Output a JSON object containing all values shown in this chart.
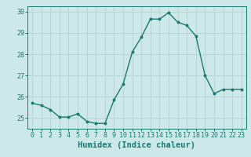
{
  "x": [
    0,
    1,
    2,
    3,
    4,
    5,
    6,
    7,
    8,
    9,
    10,
    11,
    12,
    13,
    14,
    15,
    16,
    17,
    18,
    19,
    20,
    21,
    22,
    23
  ],
  "y": [
    25.7,
    25.6,
    25.4,
    25.05,
    25.05,
    25.2,
    24.85,
    24.75,
    24.75,
    25.85,
    26.6,
    28.1,
    28.8,
    29.65,
    29.65,
    29.95,
    29.5,
    29.35,
    28.85,
    27.0,
    26.15,
    26.35,
    26.35,
    26.35
  ],
  "xlabel": "Humidex (Indice chaleur)",
  "ylim": [
    24.5,
    30.25
  ],
  "xlim": [
    -0.5,
    23.5
  ],
  "yticks": [
    25,
    26,
    27,
    28,
    29,
    30
  ],
  "xticks": [
    0,
    1,
    2,
    3,
    4,
    5,
    6,
    7,
    8,
    9,
    10,
    11,
    12,
    13,
    14,
    15,
    16,
    17,
    18,
    19,
    20,
    21,
    22,
    23
  ],
  "line_color": "#1a7a6e",
  "marker": "o",
  "marker_size": 1.8,
  "line_width": 1.0,
  "bg_color": "#cde8e8",
  "grid_color": "#b8d4d4",
  "tick_fontsize": 6,
  "xlabel_fontsize": 7.5
}
